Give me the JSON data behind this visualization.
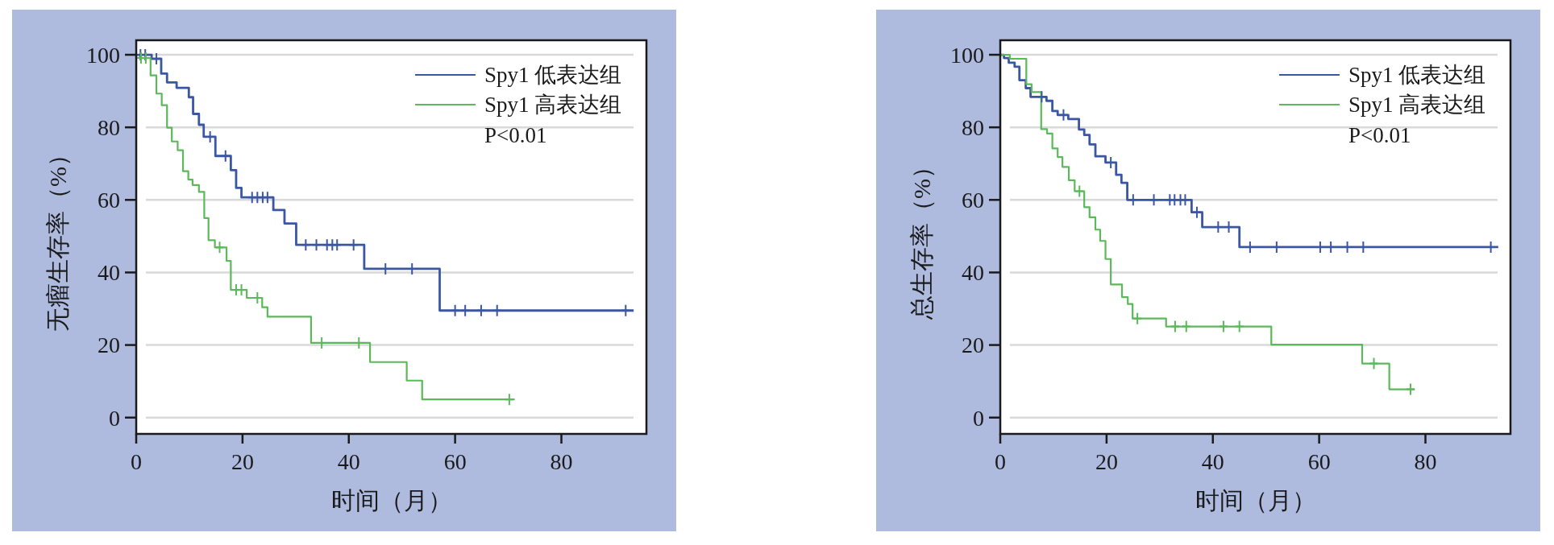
{
  "chart_data": [
    {
      "type": "step",
      "xlabel": "时间（月）",
      "ylabel": "无瘤生存率（%）",
      "xlim": [
        0,
        96
      ],
      "ylim": [
        -4.5,
        104
      ],
      "xticks": [
        0,
        20,
        40,
        60,
        80
      ],
      "yticks": [
        0,
        20,
        40,
        60,
        80,
        100
      ],
      "grid": "y",
      "legend": "top right",
      "annotations": [
        "P<0.01"
      ],
      "series": [
        {
          "name": "Spy1 低表达组",
          "color": "#3b56a2",
          "x": [
            0,
            2.9,
            4.7,
            5.8,
            7.6,
            9.9,
            10.7,
            11.8,
            12.7,
            14.9,
            17.8,
            18.8,
            19.8,
            25.8,
            27.9,
            30.1,
            42.9,
            57.1,
            93.6
          ],
          "values": [
            100,
            98.9,
            94.8,
            92.4,
            90.9,
            88.3,
            83.7,
            80.7,
            77.4,
            72.1,
            68.2,
            63.3,
            60.7,
            57.2,
            53.5,
            47.6,
            41.0,
            29.5,
            29.5
          ]
        },
        {
          "name": "Spy1 高表达组",
          "color": "#5cb85a",
          "x": [
            0,
            0.7,
            2.7,
            3.8,
            4.8,
            5.8,
            6.7,
            7.8,
            8.8,
            9.8,
            10.6,
            11.8,
            12.8,
            13.6,
            14.8,
            17.0,
            17.8,
            20.8,
            23.7,
            24.7,
            32.9,
            44.0,
            50.9,
            53.8,
            71.2
          ],
          "values": [
            100,
            99.1,
            94.3,
            89.3,
            86.1,
            79.9,
            76.1,
            73.7,
            67.9,
            65.6,
            64.1,
            62.2,
            55.0,
            48.9,
            46.9,
            43.2,
            35.2,
            33.0,
            30.4,
            27.8,
            20.6,
            15.3,
            10.2,
            5.0,
            5.0
          ]
        },
        {
          "type": "scatter",
          "marker": "cross",
          "color": "#3b56a2",
          "x": [
            0.8,
            1.7,
            3.8,
            13.9,
            16.8,
            21.8,
            22.8,
            23.8,
            24.7,
            31.9,
            33.9,
            35.9,
            36.9,
            37.8,
            40.9,
            46.9,
            51.9,
            60.0,
            61.9,
            64.9,
            67.9,
            92.1
          ],
          "values": [
            100,
            100,
            98.9,
            77.4,
            72.1,
            60.7,
            60.7,
            60.7,
            60.7,
            47.6,
            47.6,
            47.6,
            47.6,
            47.6,
            47.6,
            41.0,
            41.0,
            29.5,
            29.5,
            29.5,
            29.5,
            29.5
          ]
        },
        {
          "type": "scatter",
          "marker": "cross",
          "color": "#5cb85a",
          "x": [
            0.9,
            1.8,
            15.7,
            18.8,
            19.8,
            22.8,
            34.9,
            41.9,
            70.2
          ],
          "values": [
            99.1,
            99.1,
            46.9,
            35.2,
            35.2,
            33.0,
            20.6,
            20.6,
            5.0
          ]
        }
      ]
    },
    {
      "type": "step",
      "xlabel": "时间（月）",
      "ylabel": "总生存率（%）",
      "xlim": [
        0,
        96
      ],
      "ylim": [
        -4.5,
        104
      ],
      "xticks": [
        0,
        20,
        40,
        60,
        80
      ],
      "yticks": [
        0,
        20,
        40,
        60,
        80,
        100
      ],
      "grid": "y",
      "legend": "top right",
      "annotations": [
        "P<0.01"
      ],
      "series": [
        {
          "name": "Spy1 低表达组",
          "color": "#3b56a2",
          "x": [
            0,
            0.7,
            1.6,
            2.7,
            3.6,
            4.8,
            5.7,
            8.7,
            9.8,
            10.8,
            12.8,
            14.8,
            15.8,
            16.8,
            17.9,
            19.8,
            21.8,
            22.8,
            23.9,
            36.0,
            38.0,
            45.0,
            93.7
          ],
          "values": [
            100,
            99.1,
            97.8,
            96.7,
            93.0,
            90.8,
            88.4,
            87.3,
            84.5,
            83.4,
            82.3,
            79.4,
            77.9,
            75.3,
            72.0,
            70.3,
            66.9,
            64.7,
            60.0,
            56.6,
            52.5,
            47.0,
            47.0
          ]
        },
        {
          "name": "Spy1 高表达组",
          "color": "#5cb85a",
          "x": [
            0,
            1.8,
            4.9,
            5.9,
            7.7,
            8.8,
            9.8,
            10.8,
            11.7,
            12.9,
            14.0,
            15.8,
            16.8,
            17.9,
            18.8,
            19.8,
            20.8,
            22.9,
            24.0,
            24.9,
            31.2,
            51.0,
            68.1,
            73.2,
            78.0
          ],
          "values": [
            100,
            98.9,
            91.9,
            89.7,
            79.5,
            78.3,
            74.2,
            71.8,
            69.1,
            65.4,
            62.4,
            58.0,
            55.2,
            51.8,
            48.7,
            43.7,
            36.7,
            33.2,
            31.3,
            27.3,
            25.1,
            20.1,
            14.9,
            7.8,
            7.8
          ]
        },
        {
          "type": "scatter",
          "marker": "cross",
          "color": "#3b56a2",
          "x": [
            7.8,
            11.9,
            20.8,
            25.0,
            28.9,
            31.9,
            32.8,
            33.9,
            34.8,
            37.0,
            41.0,
            43.0,
            47.0,
            52.0,
            60.2,
            62.2,
            65.3,
            68.3,
            92.3
          ],
          "values": [
            88.4,
            83.4,
            70.3,
            60.0,
            60.0,
            60.0,
            60.0,
            60.0,
            60.0,
            56.6,
            52.5,
            52.5,
            47.0,
            47.0,
            47.0,
            47.0,
            47.0,
            47.0,
            47.0
          ]
        },
        {
          "type": "scatter",
          "marker": "cross",
          "color": "#5cb85a",
          "x": [
            14.9,
            25.8,
            32.9,
            35.0,
            42.0,
            45.0,
            70.3,
            77.2
          ],
          "values": [
            62.4,
            27.3,
            25.1,
            25.1,
            25.1,
            25.1,
            14.9,
            7.8
          ]
        }
      ]
    }
  ]
}
